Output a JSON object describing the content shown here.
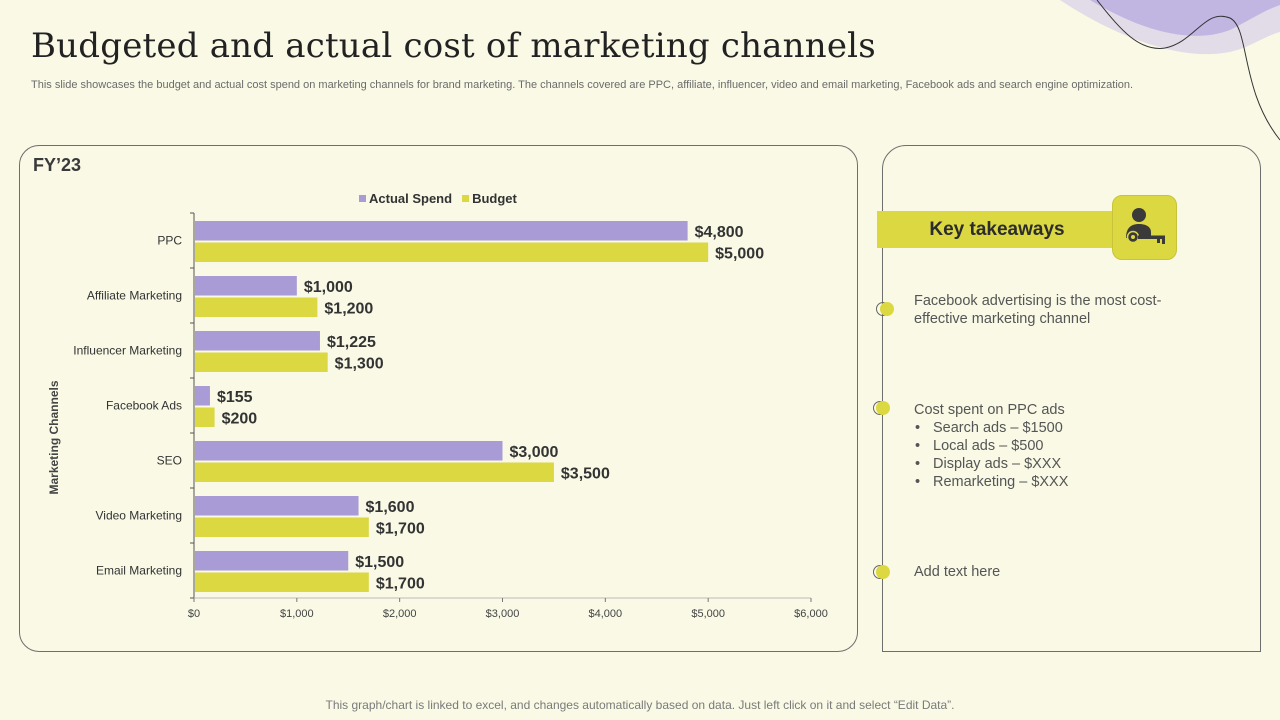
{
  "slide": {
    "title": "Budgeted and actual cost of marketing channels",
    "subtitle": "This slide showcases the budget and actual cost spend on marketing channels for brand marketing. The channels covered are PPC, affiliate, influencer, video and email marketing, Facebook ads and search engine optimization.",
    "footer": "This graph/chart is linked to excel, and changes automatically based on data. Just left click on it and select “Edit Data”."
  },
  "chart_panel": {
    "label": "FY’23"
  },
  "colors": {
    "actual": "#a99bd5",
    "budget": "#dbd841",
    "background": "#f9f9e6",
    "accent_purple": "#b1a5dc"
  },
  "chart_data": {
    "type": "bar",
    "orientation": "horizontal",
    "categories": [
      "PPC",
      "Affiliate Marketing",
      "Influencer Marketing",
      "Facebook Ads",
      "SEO",
      "Video Marketing",
      "Email Marketing"
    ],
    "series": [
      {
        "name": "Actual Spend",
        "values": [
          4800,
          1000,
          1225,
          155,
          3000,
          1600,
          1500
        ],
        "labels": [
          "$4,800",
          "$1,000",
          "$1,225",
          "$155",
          "$3,000",
          "$1,600",
          "$1,500"
        ]
      },
      {
        "name": "Budget",
        "values": [
          5000,
          1200,
          1300,
          200,
          3500,
          1700,
          1700
        ],
        "labels": [
          "$5,000",
          "$1,200",
          "$1,300",
          "$200",
          "$3,500",
          "$1,700",
          "$1,700"
        ]
      }
    ],
    "xlim": [
      0,
      6000
    ],
    "xticks": [
      0,
      1000,
      2000,
      3000,
      4000,
      5000,
      6000
    ],
    "xtick_labels": [
      "$0",
      "$1,000",
      "$2,000",
      "$3,000",
      "$4,000",
      "$5,000",
      "$6,000"
    ],
    "ylabel": "Marketing Channels",
    "legend": "top",
    "grid": false
  },
  "takeaways": {
    "heading": "Key takeaways",
    "icon": "person-key-icon",
    "items": [
      {
        "text": "Facebook advertising is the most cost-effective marketing channel"
      },
      {
        "text": "Cost spent on PPC ads",
        "bullets": [
          "Search ads – $1500",
          "Local ads – $500",
          "Display ads – $XXX",
          "Remarketing – $XXX"
        ]
      },
      {
        "text": "Add text here"
      }
    ]
  }
}
